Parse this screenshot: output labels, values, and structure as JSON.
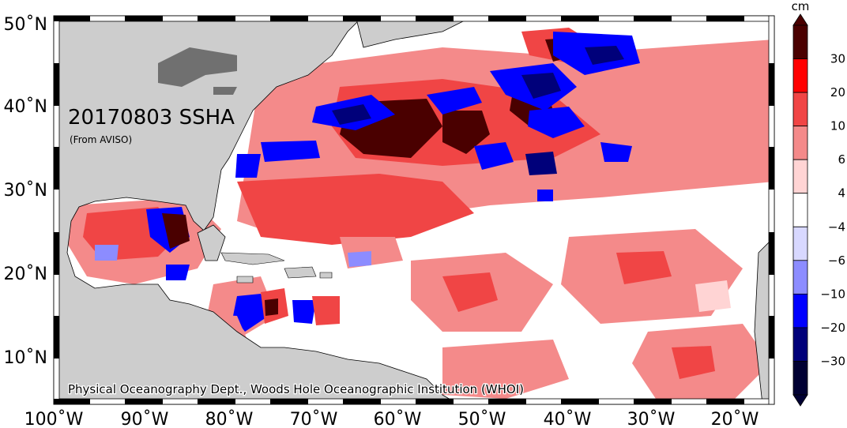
{
  "title": "20170803 SSHA",
  "source": "(From AVISO)",
  "credit": "Physical Oceanography Dept., Woods Hole Oceanographic Institution (WHOI)",
  "colorbar": {
    "unit": "cm",
    "tick_labels": [
      "30",
      "20",
      "10",
      "6",
      "4",
      "−4",
      "−6",
      "−10",
      "−20",
      "−30"
    ],
    "colors": [
      "#4a0000",
      "#ff0000",
      "#f04545",
      "#f48a8a",
      "#ffd4d4",
      "#ffffff",
      "#d8d8ff",
      "#8c8cff",
      "#0000ff",
      "#00007a",
      "#000033"
    ]
  },
  "axes": {
    "x_labels": [
      "100˚W",
      "90˚W",
      "80˚W",
      "70˚W",
      "60˚W",
      "50˚W",
      "40˚W",
      "30˚W",
      "20˚W"
    ],
    "y_labels": [
      "50˚N",
      "40˚N",
      "30˚N",
      "20˚N",
      "10˚N"
    ]
  },
  "colors": {
    "land": "#cdcdcd",
    "lakes": "#707070",
    "strong_positive": "#4a0000",
    "positive": "#f04545",
    "weak_positive": "#f48a8a",
    "pale_positive": "#ffd4d4",
    "negative": "#0000ff",
    "strong_negative": "#00007a"
  }
}
